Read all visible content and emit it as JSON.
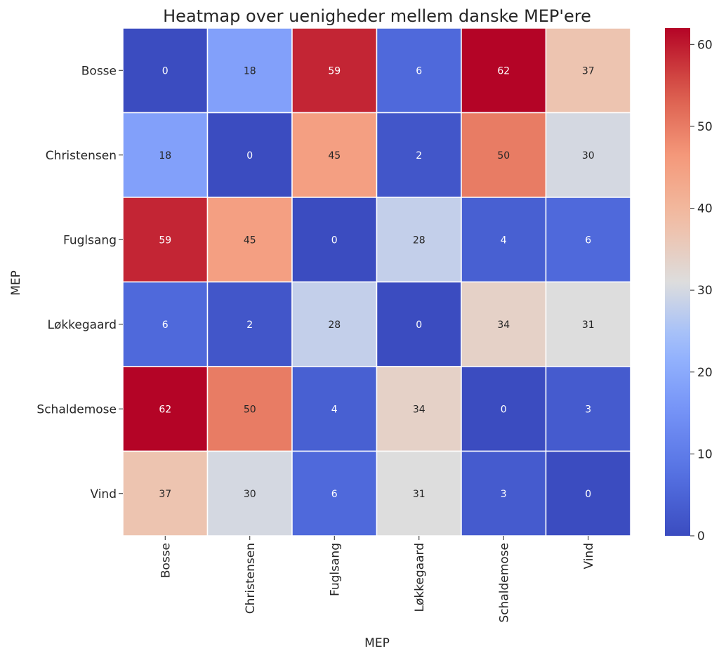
{
  "chart_data": {
    "type": "heatmap",
    "title": "Heatmap over uenigheder mellem danske MEP'ere",
    "xlabel": "MEP",
    "ylabel": "MEP",
    "x_categories": [
      "Bosse",
      "Christensen",
      "Fuglsang",
      "Løkkegaard",
      "Schaldemose",
      "Vind"
    ],
    "y_categories": [
      "Bosse",
      "Christensen",
      "Fuglsang",
      "Løkkegaard",
      "Schaldemose",
      "Vind"
    ],
    "values": [
      [
        0,
        18,
        59,
        6,
        62,
        37
      ],
      [
        18,
        0,
        45,
        2,
        50,
        30
      ],
      [
        59,
        45,
        0,
        28,
        4,
        6
      ],
      [
        6,
        2,
        28,
        0,
        34,
        31
      ],
      [
        62,
        50,
        4,
        34,
        0,
        3
      ],
      [
        37,
        30,
        6,
        31,
        3,
        0
      ]
    ],
    "colorscale": "coolwarm",
    "vmin": 0,
    "vmax": 62,
    "colorbar_ticks": [
      0,
      10,
      20,
      30,
      40,
      50,
      60
    ],
    "annotations": true
  }
}
